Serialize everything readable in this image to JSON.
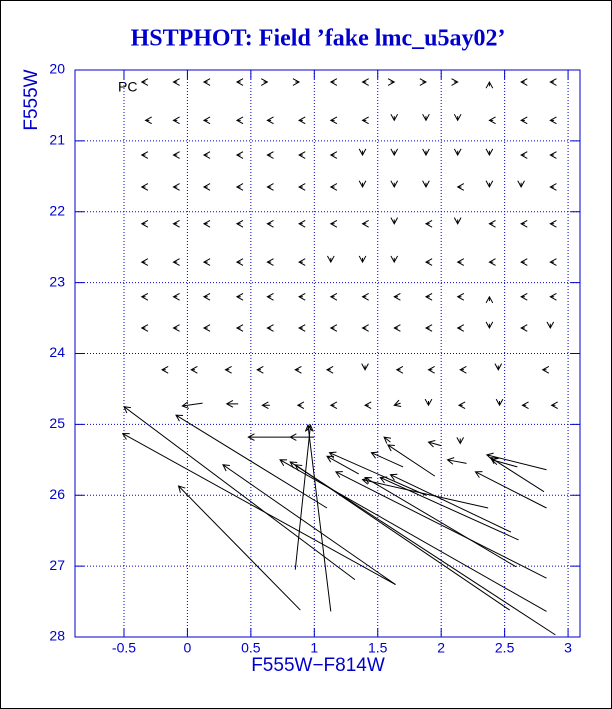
{
  "chart_data": {
    "type": "quiver",
    "title": "HSTPHOT: Field ’fake lmc_u5ay02’",
    "annotation": "PC",
    "xlabel": "F555W−F814W",
    "ylabel": "F555W",
    "xlim": [
      -0.886,
      3.094
    ],
    "ylim": [
      20,
      28
    ],
    "y_inverted": true,
    "xticks": [
      -0.5,
      0,
      0.5,
      1,
      1.5,
      2,
      2.5,
      3
    ],
    "yticks": [
      20,
      21,
      22,
      23,
      24,
      25,
      26,
      27,
      28
    ],
    "grid": true,
    "axis_color": "#0000cc",
    "color": "#000000",
    "arrows": [
      [
        -0.33,
        20.17,
        -0.36,
        20.17
      ],
      [
        -0.08,
        20.17,
        -0.11,
        20.17
      ],
      [
        0.16,
        20.17,
        0.13,
        20.17
      ],
      [
        0.42,
        20.17,
        0.39,
        20.17
      ],
      [
        0.6,
        20.17,
        0.63,
        20.17
      ],
      [
        0.85,
        20.17,
        0.88,
        20.17
      ],
      [
        1.16,
        20.17,
        1.13,
        20.17
      ],
      [
        1.41,
        20.17,
        1.38,
        20.17
      ],
      [
        1.6,
        20.17,
        1.63,
        20.17
      ],
      [
        1.85,
        20.17,
        1.88,
        20.17
      ],
      [
        2.1,
        20.17,
        2.13,
        20.17
      ],
      [
        2.38,
        20.23,
        2.38,
        20.17
      ],
      [
        2.66,
        20.17,
        2.63,
        20.17
      ],
      [
        2.89,
        20.17,
        2.86,
        20.17
      ],
      [
        -0.3,
        20.71,
        -0.33,
        20.71
      ],
      [
        -0.08,
        20.71,
        -0.11,
        20.71
      ],
      [
        0.16,
        20.71,
        0.13,
        20.71
      ],
      [
        0.42,
        20.71,
        0.39,
        20.71
      ],
      [
        0.66,
        20.71,
        0.63,
        20.71
      ],
      [
        0.91,
        20.71,
        0.88,
        20.71
      ],
      [
        1.16,
        20.71,
        1.13,
        20.71
      ],
      [
        1.41,
        20.71,
        1.38,
        20.71
      ],
      [
        1.63,
        20.65,
        1.63,
        20.71
      ],
      [
        1.88,
        20.65,
        1.88,
        20.71
      ],
      [
        2.13,
        20.65,
        2.13,
        20.71
      ],
      [
        2.41,
        20.71,
        2.38,
        20.71
      ],
      [
        2.66,
        20.71,
        2.63,
        20.71
      ],
      [
        2.89,
        20.71,
        2.86,
        20.71
      ],
      [
        -0.33,
        21.2,
        -0.36,
        21.2
      ],
      [
        -0.08,
        21.2,
        -0.11,
        21.2
      ],
      [
        0.16,
        21.2,
        0.13,
        21.2
      ],
      [
        0.42,
        21.2,
        0.39,
        21.2
      ],
      [
        0.66,
        21.2,
        0.63,
        21.2
      ],
      [
        0.91,
        21.2,
        0.88,
        21.2
      ],
      [
        1.16,
        21.2,
        1.13,
        21.2
      ],
      [
        1.38,
        21.14,
        1.38,
        21.2
      ],
      [
        1.63,
        21.14,
        1.63,
        21.2
      ],
      [
        1.88,
        21.14,
        1.88,
        21.2
      ],
      [
        2.13,
        21.14,
        2.13,
        21.2
      ],
      [
        2.38,
        21.14,
        2.38,
        21.2
      ],
      [
        2.66,
        21.2,
        2.63,
        21.2
      ],
      [
        2.89,
        21.2,
        2.86,
        21.2
      ],
      [
        -0.33,
        21.65,
        -0.36,
        21.65
      ],
      [
        -0.08,
        21.65,
        -0.11,
        21.65
      ],
      [
        0.16,
        21.65,
        0.13,
        21.65
      ],
      [
        0.42,
        21.65,
        0.39,
        21.65
      ],
      [
        0.66,
        21.65,
        0.63,
        21.65
      ],
      [
        0.91,
        21.65,
        0.88,
        21.65
      ],
      [
        1.16,
        21.65,
        1.13,
        21.65
      ],
      [
        1.38,
        21.59,
        1.38,
        21.65
      ],
      [
        1.63,
        21.59,
        1.63,
        21.65
      ],
      [
        1.88,
        21.59,
        1.88,
        21.65
      ],
      [
        2.16,
        21.65,
        2.13,
        21.65
      ],
      [
        2.38,
        21.59,
        2.38,
        21.65
      ],
      [
        2.63,
        21.59,
        2.63,
        21.65
      ],
      [
        2.89,
        21.65,
        2.86,
        21.65
      ],
      [
        -0.33,
        22.17,
        -0.36,
        22.17
      ],
      [
        -0.08,
        22.17,
        -0.11,
        22.17
      ],
      [
        0.16,
        22.17,
        0.13,
        22.17
      ],
      [
        0.42,
        22.17,
        0.39,
        22.17
      ],
      [
        0.66,
        22.17,
        0.63,
        22.17
      ],
      [
        0.91,
        22.17,
        0.88,
        22.17
      ],
      [
        1.16,
        22.17,
        1.13,
        22.17
      ],
      [
        1.41,
        22.17,
        1.38,
        22.17
      ],
      [
        1.63,
        22.11,
        1.63,
        22.17
      ],
      [
        1.91,
        22.17,
        1.88,
        22.17
      ],
      [
        2.13,
        22.11,
        2.13,
        22.17
      ],
      [
        2.41,
        22.17,
        2.38,
        22.17
      ],
      [
        2.66,
        22.17,
        2.63,
        22.17
      ],
      [
        2.89,
        22.17,
        2.86,
        22.17
      ],
      [
        -0.33,
        22.71,
        -0.36,
        22.71
      ],
      [
        -0.08,
        22.71,
        -0.11,
        22.71
      ],
      [
        0.16,
        22.71,
        0.13,
        22.71
      ],
      [
        0.42,
        22.71,
        0.39,
        22.71
      ],
      [
        0.66,
        22.71,
        0.63,
        22.71
      ],
      [
        0.91,
        22.71,
        0.88,
        22.71
      ],
      [
        1.13,
        22.65,
        1.13,
        22.71
      ],
      [
        1.38,
        22.65,
        1.38,
        22.71
      ],
      [
        1.63,
        22.65,
        1.63,
        22.71
      ],
      [
        1.91,
        22.71,
        1.88,
        22.71
      ],
      [
        2.16,
        22.71,
        2.13,
        22.71
      ],
      [
        2.41,
        22.71,
        2.38,
        22.71
      ],
      [
        2.66,
        22.71,
        2.63,
        22.71
      ],
      [
        2.89,
        22.71,
        2.86,
        22.71
      ],
      [
        -0.33,
        23.2,
        -0.36,
        23.2
      ],
      [
        -0.08,
        23.2,
        -0.11,
        23.2
      ],
      [
        0.16,
        23.2,
        0.13,
        23.2
      ],
      [
        0.42,
        23.2,
        0.39,
        23.2
      ],
      [
        0.66,
        23.2,
        0.63,
        23.2
      ],
      [
        0.91,
        23.2,
        0.88,
        23.2
      ],
      [
        1.16,
        23.2,
        1.13,
        23.2
      ],
      [
        1.41,
        23.2,
        1.38,
        23.2
      ],
      [
        1.66,
        23.2,
        1.63,
        23.2
      ],
      [
        1.91,
        23.2,
        1.88,
        23.2
      ],
      [
        2.16,
        23.2,
        2.13,
        23.2
      ],
      [
        2.38,
        23.26,
        2.38,
        23.2
      ],
      [
        2.66,
        23.2,
        2.63,
        23.2
      ],
      [
        2.89,
        23.2,
        2.86,
        23.2
      ],
      [
        -0.33,
        23.64,
        -0.36,
        23.64
      ],
      [
        -0.08,
        23.64,
        -0.11,
        23.64
      ],
      [
        0.16,
        23.64,
        0.13,
        23.64
      ],
      [
        0.42,
        23.64,
        0.39,
        23.64
      ],
      [
        0.66,
        23.64,
        0.63,
        23.64
      ],
      [
        0.91,
        23.64,
        0.88,
        23.64
      ],
      [
        1.16,
        23.64,
        1.13,
        23.64
      ],
      [
        1.41,
        23.64,
        1.38,
        23.64
      ],
      [
        1.66,
        23.64,
        1.63,
        23.64
      ],
      [
        1.91,
        23.64,
        1.88,
        23.64
      ],
      [
        2.16,
        23.64,
        2.13,
        23.64
      ],
      [
        2.38,
        23.58,
        2.38,
        23.64
      ],
      [
        2.66,
        23.64,
        2.63,
        23.64
      ],
      [
        2.86,
        23.58,
        2.86,
        23.64
      ],
      [
        -0.17,
        24.23,
        -0.2,
        24.23
      ],
      [
        0.06,
        24.23,
        0.03,
        24.23
      ],
      [
        0.33,
        24.23,
        0.3,
        24.23
      ],
      [
        0.58,
        24.23,
        0.55,
        24.23
      ],
      [
        0.88,
        24.23,
        0.85,
        24.23
      ],
      [
        1.13,
        24.23,
        1.1,
        24.23
      ],
      [
        1.4,
        24.17,
        1.4,
        24.23
      ],
      [
        1.68,
        24.23,
        1.65,
        24.23
      ],
      [
        1.93,
        24.23,
        1.9,
        24.23
      ],
      [
        2.18,
        24.23,
        2.15,
        24.23
      ],
      [
        2.45,
        24.17,
        2.45,
        24.23
      ],
      [
        2.83,
        24.23,
        2.8,
        24.23
      ],
      [
        0.12,
        24.7,
        -0.04,
        24.74
      ],
      [
        0.4,
        24.71,
        0.31,
        24.71
      ],
      [
        0.65,
        24.73,
        0.59,
        24.73
      ],
      [
        0.9,
        24.73,
        0.87,
        24.73
      ],
      [
        1.16,
        24.73,
        1.13,
        24.73
      ],
      [
        1.43,
        24.73,
        1.4,
        24.73
      ],
      [
        1.68,
        24.7,
        1.63,
        24.73
      ],
      [
        1.9,
        24.67,
        1.9,
        24.73
      ],
      [
        2.17,
        24.73,
        2.14,
        24.73
      ],
      [
        2.46,
        24.67,
        2.46,
        24.73
      ],
      [
        2.67,
        24.73,
        2.64,
        24.73
      ],
      [
        2.9,
        24.73,
        2.87,
        24.73
      ],
      [
        0.89,
        27.62,
        -0.07,
        25.87
      ],
      [
        1.32,
        27.19,
        -0.5,
        24.75
      ],
      [
        1.64,
        27.26,
        -0.51,
        25.13
      ],
      [
        1.1,
        26.18,
        -0.09,
        24.87
      ],
      [
        1.13,
        27.64,
        0.95,
        25.01
      ],
      [
        0.85,
        27.05,
        0.97,
        25.01
      ],
      [
        1.64,
        27.26,
        0.28,
        25.57
      ],
      [
        0.81,
        25.18,
        0.48,
        25.18
      ],
      [
        1.0,
        25.18,
        0.81,
        25.18
      ],
      [
        2.9,
        27.97,
        0.81,
        25.53
      ],
      [
        2.83,
        27.64,
        0.73,
        25.5
      ],
      [
        2.54,
        27.62,
        0.85,
        25.57
      ],
      [
        2.83,
        27.17,
        1.17,
        25.67
      ],
      [
        2.59,
        27.01,
        1.4,
        25.75
      ],
      [
        2.61,
        26.63,
        1.52,
        25.75
      ],
      [
        2.55,
        26.52,
        1.6,
        25.71
      ],
      [
        2.37,
        26.18,
        1.38,
        25.78
      ],
      [
        2.83,
        26.18,
        2.27,
        25.67
      ],
      [
        2.81,
        25.95,
        2.39,
        25.47
      ],
      [
        2.83,
        25.64,
        2.36,
        25.43
      ],
      [
        2.6,
        25.6,
        2.4,
        25.5
      ],
      [
        1.95,
        25.73,
        1.58,
        25.29
      ],
      [
        1.88,
        26.0,
        1.12,
        25.4
      ],
      [
        1.35,
        25.7,
        1.1,
        25.45
      ],
      [
        1.7,
        25.6,
        1.45,
        25.4
      ],
      [
        2.2,
        25.55,
        2.05,
        25.5
      ],
      [
        2.0,
        25.3,
        1.9,
        25.25
      ],
      [
        1.6,
        25.25,
        1.55,
        25.18
      ],
      [
        2.15,
        25.2,
        2.15,
        25.27
      ]
    ]
  }
}
